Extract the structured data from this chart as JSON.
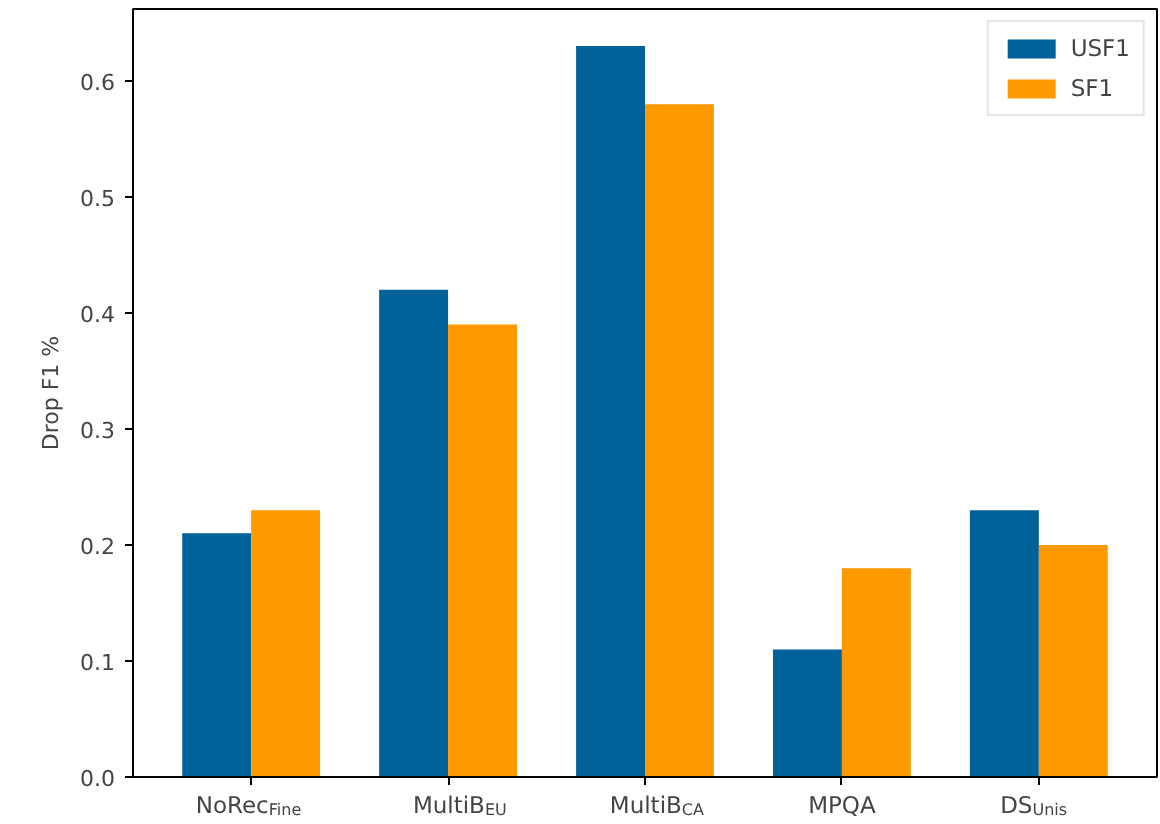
{
  "chart_data": {
    "type": "bar",
    "ylabel": "Drop F1 %",
    "categories": [
      "NoRec$_{Fine}$",
      "MultiB$_{EU}$",
      "MultiB$_{CA}$",
      "MPQA",
      "DS$_{Unis}$"
    ],
    "series": [
      {
        "name": "USF1",
        "color": "#006299",
        "values": [
          0.21,
          0.42,
          0.63,
          0.11,
          0.23
        ]
      },
      {
        "name": "SF1",
        "color": "#ff9900",
        "values": [
          0.23,
          0.39,
          0.58,
          0.18,
          0.2
        ]
      }
    ],
    "ylim": [
      0,
      0.662
    ],
    "yticks": [
      {
        "value": 0,
        "label": "0.0"
      },
      {
        "value": 0.1,
        "label": "0.1"
      },
      {
        "value": 0.2,
        "label": "0.2"
      },
      {
        "value": 0.3,
        "label": "0.3"
      },
      {
        "value": 0.4,
        "label": "0.4"
      },
      {
        "value": 0.5,
        "label": "0.5"
      },
      {
        "value": 0.6,
        "label": "0.6"
      }
    ],
    "grid": false,
    "legend": "top right"
  }
}
